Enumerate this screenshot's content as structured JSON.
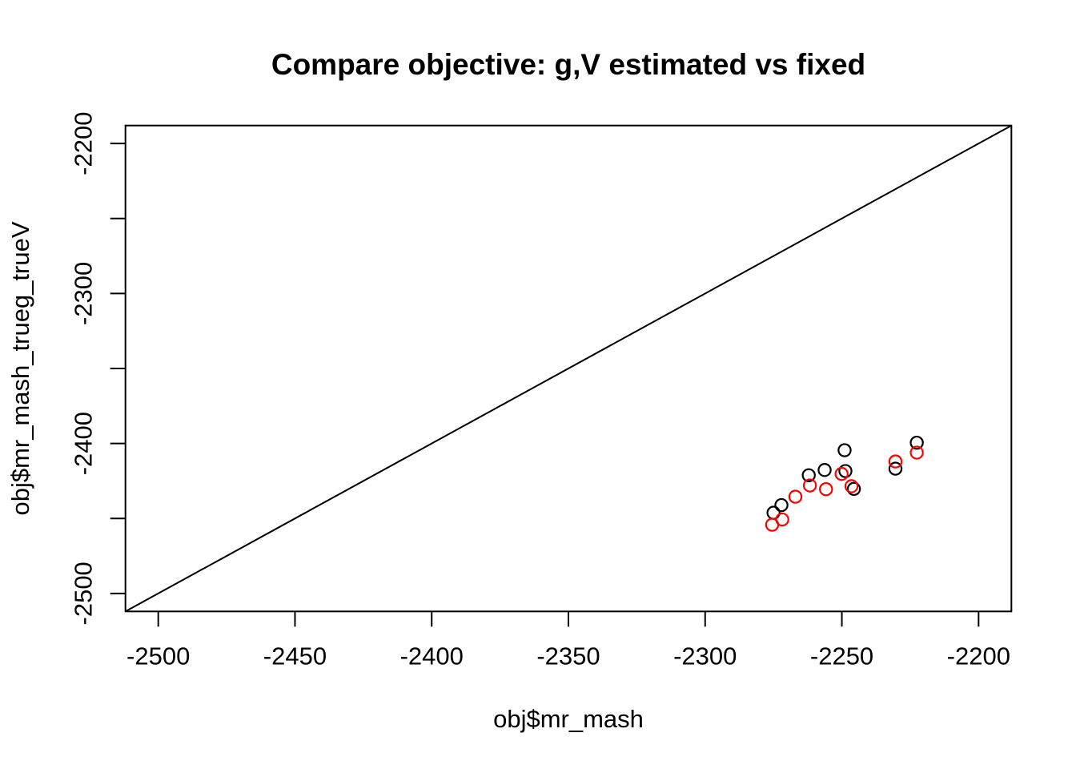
{
  "figure": {
    "background": "#ffffff",
    "foreground": "#000000"
  },
  "chart_data": {
    "type": "scatter",
    "title": "Compare objective: g,V estimated vs fixed",
    "xlabel": "obj$mr_mash",
    "ylabel": "obj$mr_mash_trueg_trueV",
    "xlim": [
      -2512,
      -2188
    ],
    "ylim": [
      -2512,
      -2188
    ],
    "x_ticks": [
      -2500,
      -2450,
      -2400,
      -2350,
      -2300,
      -2250,
      -2200
    ],
    "x_tick_labels": [
      "-2500",
      "-2450",
      "-2400",
      "-2350",
      "-2300",
      "-2250",
      "-2200"
    ],
    "y_ticks": [
      -2500,
      -2450,
      -2400,
      -2350,
      -2300,
      -2250,
      -2200
    ],
    "y_tick_labels": [
      "-2500",
      "",
      "-2400",
      "",
      "-2300",
      "",
      "-2200"
    ],
    "grid": false,
    "legend": "none",
    "box": true,
    "reference_line": {
      "type": "identity",
      "slope": 1,
      "intercept": 0,
      "color": "#000000"
    },
    "marker": "open-circle",
    "series": [
      {
        "name": "black",
        "color": "#000000",
        "points": [
          [
            -2222.6,
            -2399.5
          ],
          [
            -2249.0,
            -2404.5
          ],
          [
            -2230.4,
            -2416.8
          ],
          [
            -2256.3,
            -2417.7
          ],
          [
            -2248.7,
            -2418.4
          ],
          [
            -2262.1,
            -2421.2
          ],
          [
            -2245.6,
            -2430.3
          ],
          [
            -2272.1,
            -2441.1
          ],
          [
            -2275.0,
            -2446.2
          ]
        ]
      },
      {
        "name": "red",
        "color": "#ff0000",
        "points": [
          [
            -2222.6,
            -2406.1
          ],
          [
            -2230.4,
            -2412.0
          ],
          [
            -2250.1,
            -2420.3
          ],
          [
            -2246.5,
            -2428.5
          ],
          [
            -2261.7,
            -2428.0
          ],
          [
            -2255.8,
            -2430.5
          ],
          [
            -2267.0,
            -2435.5
          ],
          [
            -2271.8,
            -2450.7
          ],
          [
            -2275.5,
            -2454.2
          ]
        ]
      }
    ]
  }
}
